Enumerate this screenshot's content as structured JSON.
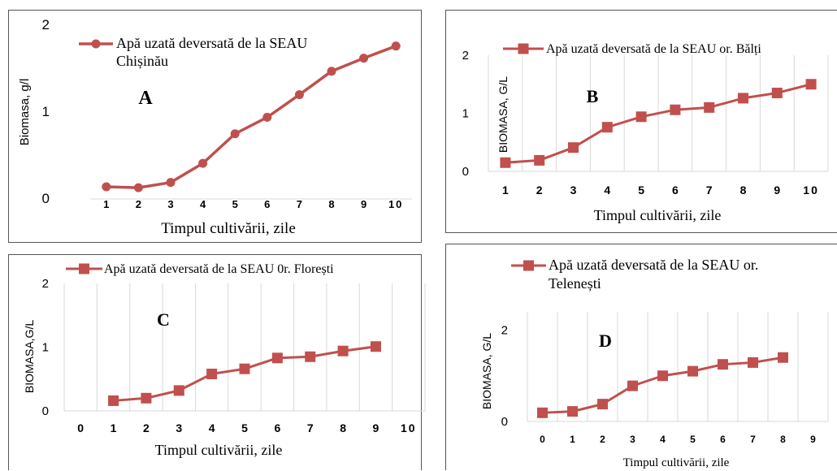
{
  "colors": {
    "series": "#C0504D",
    "grid": "#d9d9d9",
    "axis": "#888888",
    "text": "#000000"
  },
  "chart_data": [
    {
      "type": "line",
      "panel_letter": "A",
      "x": [
        1,
        2,
        3,
        4,
        5,
        6,
        7,
        8,
        9,
        10
      ],
      "x_tick_labels": [
        "1",
        "2",
        "3",
        "4",
        "5",
        "6",
        "7",
        "8",
        "9",
        "10"
      ],
      "series": [
        {
          "name": "Apă uzată deversată de la SEAU Chișinău",
          "values": [
            0.14,
            0.13,
            0.19,
            0.41,
            0.75,
            0.94,
            1.2,
            1.47,
            1.62,
            1.76
          ]
        }
      ],
      "y_ticks": [
        0,
        1,
        2
      ],
      "ylim": [
        0,
        2
      ],
      "xlabel": "Timpul cultivării, zile",
      "ylabel": "Biomasa, g/l",
      "marker": "circle",
      "grid": false,
      "legend": "top"
    },
    {
      "type": "line",
      "panel_letter": "B",
      "x": [
        1,
        2,
        3,
        4,
        5,
        6,
        7,
        8,
        9,
        10
      ],
      "x_tick_labels": [
        "1",
        "2",
        "3",
        "4",
        "5",
        "6",
        "7",
        "8",
        "9",
        "10"
      ],
      "series": [
        {
          "name": "Apă uzată deversată de la SEAU or. Bălți",
          "values": [
            0.15,
            0.19,
            0.41,
            0.76,
            0.94,
            1.06,
            1.1,
            1.26,
            1.35,
            1.5
          ]
        }
      ],
      "y_ticks": [
        0,
        1,
        2
      ],
      "ylim": [
        0,
        2
      ],
      "xlabel": "Timpul cultivării, zile",
      "ylabel": "BIOMASA, G/L",
      "marker": "square",
      "grid": true,
      "legend": "top"
    },
    {
      "type": "line",
      "panel_letter": "C",
      "x": [
        0,
        1,
        2,
        3,
        4,
        5,
        6,
        7,
        8,
        9,
        10
      ],
      "x_tick_labels": [
        "0",
        "1",
        "2",
        "3",
        "4",
        "5",
        "6",
        "7",
        "8",
        "9",
        "10"
      ],
      "series": [
        {
          "name": "Apă uzată deversată de la SEAU 0r. Florești",
          "values": [
            null,
            0.16,
            0.2,
            0.32,
            0.58,
            0.66,
            0.83,
            0.85,
            0.94,
            1.01,
            null
          ]
        }
      ],
      "y_ticks": [
        0,
        1,
        2
      ],
      "ylim": [
        0,
        2
      ],
      "xlabel": "Timpul cultivării, zile",
      "ylabel": "BIOMASA,G/L",
      "marker": "square",
      "grid": true,
      "legend": "top"
    },
    {
      "type": "line",
      "panel_letter": "D",
      "x": [
        0,
        1,
        2,
        3,
        4,
        5,
        6,
        7,
        8,
        9
      ],
      "x_tick_labels": [
        "0",
        "1",
        "2",
        "3",
        "4",
        "5",
        "6",
        "7",
        "8",
        "9"
      ],
      "series": [
        {
          "name": "Apă uzată deversată de la SEAU or. Telenești",
          "values": [
            0.19,
            0.22,
            0.38,
            0.78,
            1.0,
            1.1,
            1.25,
            1.29,
            1.4,
            null
          ]
        }
      ],
      "y_ticks": [
        0,
        2
      ],
      "ylim": [
        0,
        2.4
      ],
      "xlabel": "Timpul cultivării, zile",
      "ylabel": "BIOMASA, G/L",
      "marker": "square",
      "grid": true,
      "legend": "top"
    }
  ]
}
